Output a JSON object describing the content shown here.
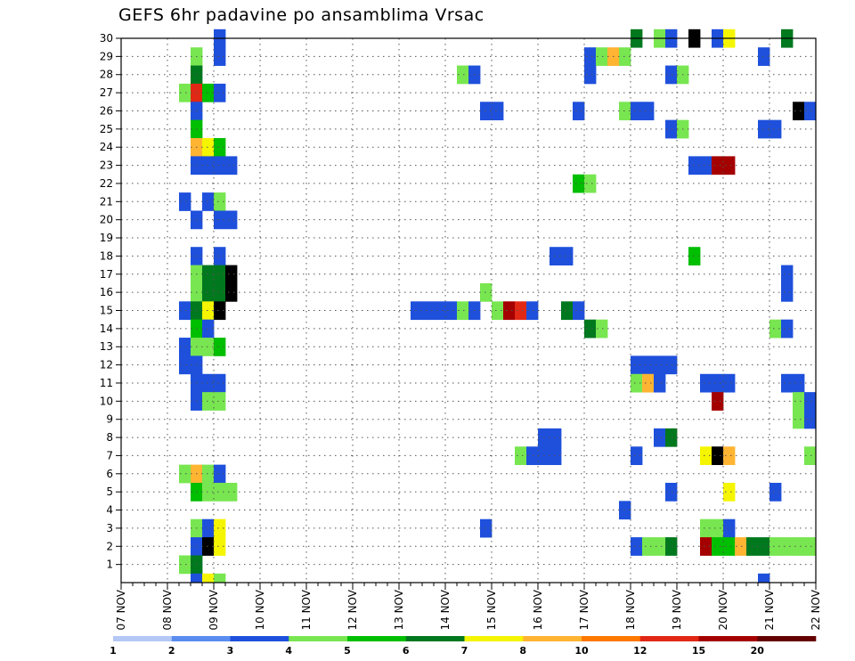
{
  "chart_data": {
    "type": "heatmap",
    "title": "GEFS 6hr padavine po ansamblima Vrsac",
    "xlabel": "",
    "ylabel": "",
    "x_tick_labels": [
      "07 NOV",
      "08 NOV",
      "09 NOV",
      "10 NOV",
      "11 NOV",
      "12 NOV",
      "13 NOV",
      "14 NOV",
      "15 NOV",
      "16 NOV",
      "17 NOV",
      "18 NOV",
      "19 NOV",
      "20 NOV",
      "21 NOV",
      "22 NOV"
    ],
    "y_tick_labels": [
      "1",
      "2",
      "3",
      "4",
      "5",
      "6",
      "7",
      "8",
      "9",
      "10",
      "11",
      "12",
      "13",
      "14",
      "15",
      "16",
      "17",
      "18",
      "19",
      "20",
      "21",
      "22",
      "23",
      "24",
      "25",
      "26",
      "27",
      "28",
      "29",
      "30"
    ],
    "xlim_days": [
      0,
      15
    ],
    "ylim_members": [
      0,
      30
    ],
    "grid": "dotted",
    "time_step_hours": 6,
    "colorbar": {
      "position": "bottom",
      "labels": [
        "1",
        "2",
        "3",
        "4",
        "5",
        "6",
        "7",
        "8",
        "10",
        "12",
        "15",
        "20"
      ],
      "colors": [
        "#b4c8f5",
        "#5a8cf0",
        "#1e50dc",
        "#78e650",
        "#00be00",
        "#00781e",
        "#f5f500",
        "#ffb432",
        "#ff7800",
        "#e12814",
        "#a50000",
        "#640000"
      ]
    },
    "cells": [
      [
        30,
        9,
        2
      ],
      [
        30,
        45,
        5
      ],
      [
        30,
        47,
        3
      ],
      [
        30,
        48,
        2
      ],
      [
        30,
        50,
        13
      ],
      [
        30,
        52,
        2
      ],
      [
        30,
        53,
        6
      ],
      [
        30,
        58,
        5
      ],
      [
        29,
        7,
        3
      ],
      [
        29,
        9,
        2
      ],
      [
        29,
        41,
        2
      ],
      [
        29,
        42,
        3
      ],
      [
        29,
        43,
        7
      ],
      [
        29,
        44,
        3
      ],
      [
        29,
        56,
        2
      ],
      [
        28,
        7,
        5
      ],
      [
        28,
        30,
        3
      ],
      [
        28,
        31,
        2
      ],
      [
        28,
        41,
        2
      ],
      [
        28,
        48,
        2
      ],
      [
        28,
        49,
        3
      ],
      [
        27,
        6,
        3
      ],
      [
        27,
        7,
        9
      ],
      [
        27,
        8,
        4
      ],
      [
        27,
        9,
        2
      ],
      [
        26,
        7,
        2
      ],
      [
        26,
        32,
        2
      ],
      [
        26,
        33,
        2
      ],
      [
        26,
        40,
        2
      ],
      [
        26,
        44,
        3
      ],
      [
        26,
        45,
        2
      ],
      [
        26,
        46,
        2
      ],
      [
        26,
        59,
        14
      ],
      [
        26,
        60,
        2
      ],
      [
        25,
        7,
        4
      ],
      [
        25,
        48,
        2
      ],
      [
        25,
        49,
        3
      ],
      [
        25,
        56,
        2
      ],
      [
        25,
        57,
        2
      ],
      [
        24,
        7,
        7
      ],
      [
        24,
        8,
        6
      ],
      [
        24,
        9,
        4
      ],
      [
        23,
        7,
        2
      ],
      [
        23,
        8,
        2
      ],
      [
        23,
        9,
        2
      ],
      [
        23,
        10,
        2
      ],
      [
        23,
        50,
        2
      ],
      [
        23,
        51,
        2
      ],
      [
        23,
        52,
        10
      ],
      [
        23,
        53,
        10
      ],
      [
        22,
        40,
        4
      ],
      [
        22,
        41,
        3
      ],
      [
        21,
        6,
        2
      ],
      [
        21,
        8,
        2
      ],
      [
        21,
        9,
        3
      ],
      [
        20,
        7,
        2
      ],
      [
        20,
        9,
        2
      ],
      [
        20,
        10,
        2
      ],
      [
        18,
        7,
        2
      ],
      [
        18,
        9,
        2
      ],
      [
        18,
        38,
        2
      ],
      [
        18,
        39,
        2
      ],
      [
        18,
        50,
        4
      ],
      [
        17,
        7,
        3
      ],
      [
        17,
        8,
        5
      ],
      [
        17,
        9,
        5
      ],
      [
        17,
        10,
        12
      ],
      [
        17,
        58,
        2
      ],
      [
        16,
        7,
        3
      ],
      [
        16,
        8,
        5
      ],
      [
        16,
        9,
        5
      ],
      [
        16,
        10,
        12
      ],
      [
        16,
        32,
        3
      ],
      [
        16,
        58,
        2
      ],
      [
        15,
        6,
        2
      ],
      [
        15,
        7,
        5
      ],
      [
        15,
        8,
        6
      ],
      [
        15,
        9,
        14
      ],
      [
        15,
        26,
        2
      ],
      [
        15,
        27,
        2
      ],
      [
        15,
        28,
        2
      ],
      [
        15,
        29,
        2
      ],
      [
        15,
        30,
        3
      ],
      [
        15,
        31,
        2
      ],
      [
        15,
        33,
        3
      ],
      [
        15,
        34,
        10
      ],
      [
        15,
        35,
        9
      ],
      [
        15,
        36,
        2
      ],
      [
        15,
        39,
        5
      ],
      [
        15,
        40,
        2
      ],
      [
        14,
        7,
        4
      ],
      [
        14,
        8,
        2
      ],
      [
        14,
        41,
        5
      ],
      [
        14,
        42,
        3
      ],
      [
        14,
        57,
        3
      ],
      [
        14,
        58,
        2
      ],
      [
        13,
        6,
        2
      ],
      [
        13,
        7,
        3
      ],
      [
        13,
        8,
        3
      ],
      [
        13,
        9,
        4
      ],
      [
        12,
        6,
        2
      ],
      [
        12,
        7,
        2
      ],
      [
        12,
        45,
        2
      ],
      [
        12,
        46,
        2
      ],
      [
        12,
        47,
        2
      ],
      [
        12,
        48,
        2
      ],
      [
        11,
        7,
        2
      ],
      [
        11,
        8,
        2
      ],
      [
        11,
        9,
        2
      ],
      [
        11,
        45,
        3
      ],
      [
        11,
        46,
        7
      ],
      [
        11,
        47,
        2
      ],
      [
        11,
        51,
        2
      ],
      [
        11,
        52,
        2
      ],
      [
        11,
        53,
        2
      ],
      [
        11,
        58,
        2
      ],
      [
        11,
        59,
        2
      ],
      [
        10,
        7,
        2
      ],
      [
        10,
        8,
        3
      ],
      [
        10,
        9,
        3
      ],
      [
        10,
        52,
        10
      ],
      [
        10,
        59,
        3
      ],
      [
        10,
        60,
        2
      ],
      [
        9,
        59,
        3
      ],
      [
        9,
        60,
        2
      ],
      [
        8,
        37,
        2
      ],
      [
        8,
        38,
        2
      ],
      [
        8,
        47,
        2
      ],
      [
        8,
        48,
        5
      ],
      [
        7,
        35,
        3
      ],
      [
        7,
        36,
        2
      ],
      [
        7,
        37,
        2
      ],
      [
        7,
        38,
        2
      ],
      [
        7,
        45,
        2
      ],
      [
        7,
        51,
        6
      ],
      [
        7,
        52,
        14
      ],
      [
        7,
        53,
        7
      ],
      [
        7,
        60,
        3
      ],
      [
        6,
        6,
        3
      ],
      [
        6,
        7,
        7
      ],
      [
        6,
        8,
        3
      ],
      [
        6,
        9,
        2
      ],
      [
        5,
        7,
        4
      ],
      [
        5,
        8,
        3
      ],
      [
        5,
        9,
        3
      ],
      [
        5,
        10,
        3
      ],
      [
        5,
        48,
        2
      ],
      [
        5,
        53,
        6
      ],
      [
        5,
        57,
        2
      ],
      [
        4,
        44,
        2
      ],
      [
        3,
        7,
        3
      ],
      [
        3,
        8,
        2
      ],
      [
        3,
        9,
        6
      ],
      [
        3,
        32,
        2
      ],
      [
        3,
        51,
        3
      ],
      [
        3,
        52,
        3
      ],
      [
        3,
        53,
        2
      ],
      [
        2,
        7,
        2
      ],
      [
        2,
        8,
        12
      ],
      [
        2,
        9,
        6
      ],
      [
        2,
        45,
        2
      ],
      [
        2,
        46,
        3
      ],
      [
        2,
        47,
        3
      ],
      [
        2,
        48,
        5
      ],
      [
        2,
        51,
        10
      ],
      [
        2,
        52,
        4
      ],
      [
        2,
        53,
        4
      ],
      [
        2,
        54,
        7
      ],
      [
        2,
        55,
        5
      ],
      [
        2,
        56,
        5
      ],
      [
        2,
        57,
        3
      ],
      [
        2,
        58,
        3
      ],
      [
        2,
        59,
        3
      ],
      [
        2,
        60,
        3
      ],
      [
        1,
        6,
        3
      ],
      [
        1,
        7,
        5
      ]
    ],
    "bottom_strip_cells": [
      [
        7,
        2
      ],
      [
        8,
        6
      ],
      [
        9,
        3
      ],
      [
        56,
        2
      ]
    ]
  }
}
